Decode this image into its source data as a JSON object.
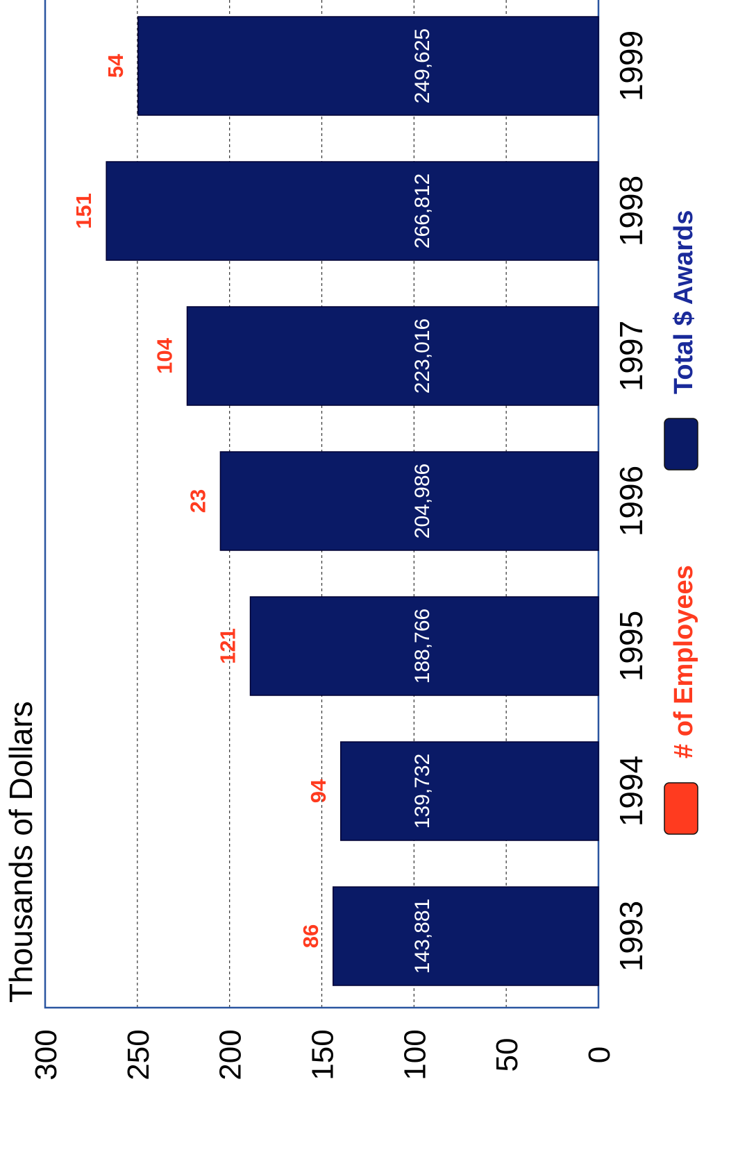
{
  "chart_data": {
    "type": "bar",
    "orientation": "horizontal-rotated",
    "ylabel": "Thousands of Dollars",
    "xlim": [
      0,
      300
    ],
    "ticks": [
      0,
      50,
      100,
      150,
      200,
      250,
      300
    ],
    "tick_labels": [
      "0",
      "50",
      "100",
      "150",
      "200",
      "250",
      "300"
    ],
    "grid": true,
    "categories": [
      "1993",
      "1994",
      "1995",
      "1996",
      "1997",
      "1998",
      "1999"
    ],
    "series": [
      {
        "name": "Total $ Awards",
        "color": "#0a1a66",
        "values": [
          143.881,
          139.732,
          188.766,
          204.986,
          223.016,
          266.812,
          249.625
        ],
        "labels": [
          "143,881",
          "139,732",
          "188,766",
          "204,986",
          "223,016",
          "266,812",
          "249,625"
        ]
      },
      {
        "name": "# of Employees",
        "color": "#ff3b1f",
        "values": [
          86,
          94,
          121,
          23,
          104,
          151,
          54
        ],
        "labels": [
          "86",
          "94",
          "121",
          "23",
          "104",
          "151",
          "54"
        ]
      }
    ],
    "legend": {
      "placement": "bottom",
      "items": [
        {
          "label": "# of Employees",
          "color": "#ff3b1f",
          "text_color": "#ff3b1f"
        },
        {
          "label": "Total $ Awards",
          "color": "#0a1a66",
          "text_color": "#1a2a9a"
        }
      ]
    },
    "colors": {
      "axis": "#2a55a0",
      "grid": "#333333",
      "value_label": "#ffffff",
      "category_label": "#000000"
    }
  }
}
